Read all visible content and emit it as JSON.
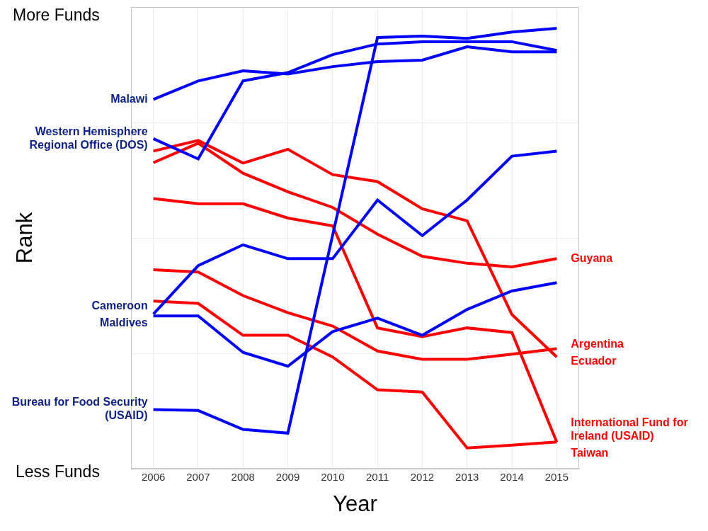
{
  "chart_data": {
    "type": "line",
    "x_label": "Year",
    "y_label": "Rank",
    "annotations": [
      "More Funds",
      "Less Funds"
    ],
    "x": [
      2006,
      2007,
      2008,
      2009,
      2010,
      2011,
      2012,
      2013,
      2014,
      2015
    ],
    "xlim": [
      2005.5,
      2015.5
    ],
    "xticks": [
      2006,
      2007,
      2008,
      2009,
      2010,
      2011,
      2012,
      2013,
      2014,
      2015
    ],
    "ylim": [
      0,
      100
    ],
    "yticks": [
      0,
      25,
      50,
      75,
      100
    ],
    "grid": true,
    "tick_labels": "x",
    "marker": "none",
    "line_style": "solid",
    "series": [
      {
        "name": "Malawi",
        "color": "#0000ff",
        "values": [
          80.0,
          84.0,
          86.2,
          85.5,
          87.1,
          88.2,
          88.5,
          91.4,
          90.3,
          90.3
        ]
      },
      {
        "name": "Western Hemisphere Regional Office (DOS)",
        "color": "#0000ff",
        "values": [
          71.5,
          67.1,
          84.0,
          85.8,
          89.7,
          92.0,
          92.5,
          92.5,
          92.5,
          90.6
        ]
      },
      {
        "name": "Cameroon",
        "color": "#0000ff",
        "values": [
          33.5,
          44.0,
          48.5,
          45.5,
          45.5,
          58.2,
          50.5,
          58.2,
          67.7,
          68.8
        ]
      },
      {
        "name": "Maldives",
        "color": "#0000ff",
        "values": [
          33.1,
          33.1,
          25.2,
          22.2,
          29.7,
          32.6,
          28.9,
          34.5,
          38.5,
          40.3
        ]
      },
      {
        "name": "Bureau for Food Security (USAID)",
        "color": "#0000ff",
        "values": [
          12.8,
          12.6,
          8.5,
          7.7,
          50.6,
          93.4,
          93.7,
          93.2,
          94.6,
          95.4
        ]
      },
      {
        "name": "Guyana",
        "color": "#ff0000",
        "values": [
          66.3,
          70.5,
          64.0,
          60.0,
          56.6,
          50.8,
          46.0,
          44.5,
          43.7,
          45.5
        ]
      },
      {
        "name": "Argentina",
        "color": "#ff0000",
        "values": [
          43.1,
          42.6,
          37.5,
          33.8,
          30.9,
          25.5,
          23.7,
          23.7,
          24.8,
          26.0
        ]
      },
      {
        "name": "Ecuador",
        "color": "#ff0000",
        "values": [
          68.8,
          71.1,
          66.2,
          69.2,
          63.7,
          62.2,
          56.3,
          53.7,
          33.4,
          24.2
        ]
      },
      {
        "name": "International Fund for Ireland (USAID)",
        "color": "#ff0000",
        "values": [
          58.5,
          57.4,
          57.4,
          54.3,
          52.6,
          30.5,
          28.6,
          30.5,
          29.5,
          5.8
        ]
      },
      {
        "name": "Taiwan",
        "color": "#ff0000",
        "values": [
          36.3,
          35.8,
          28.9,
          28.9,
          24.2,
          17.1,
          16.6,
          4.5,
          5.1,
          5.8
        ]
      }
    ]
  }
}
